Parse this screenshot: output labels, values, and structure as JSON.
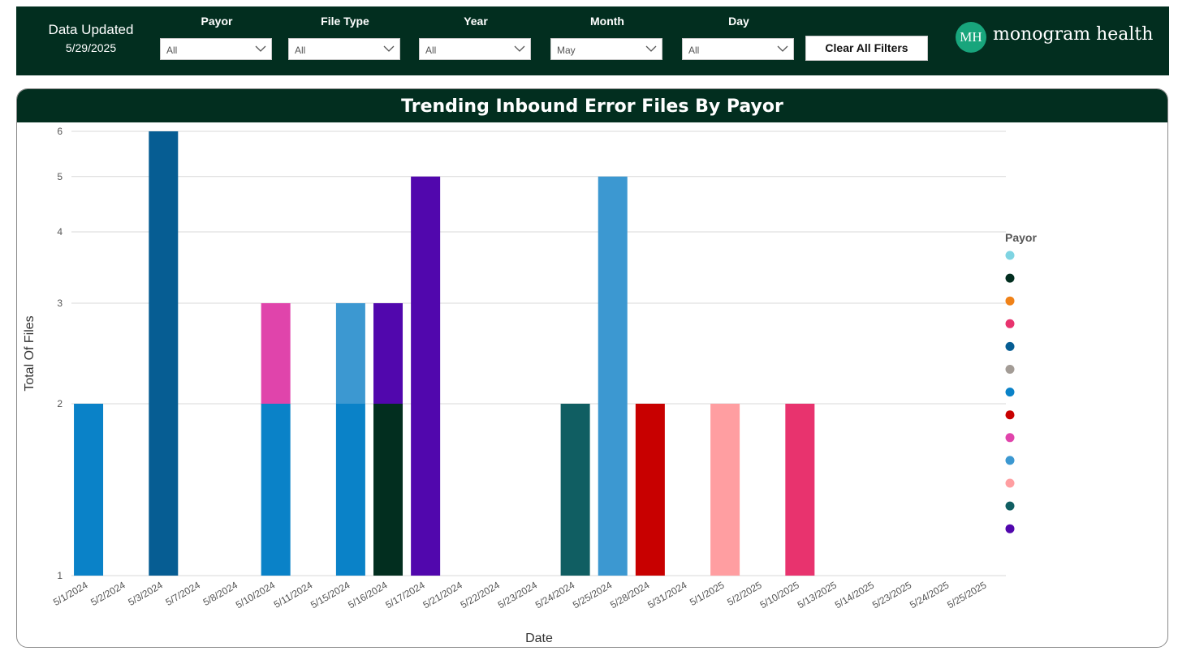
{
  "header": {
    "updated_label": "Data Updated",
    "updated_date": "5/29/2025",
    "filters": [
      {
        "label": "Payor",
        "value": "All"
      },
      {
        "label": "File Type",
        "value": "All"
      },
      {
        "label": "Year",
        "value": "All"
      },
      {
        "label": "Month",
        "value": "May"
      },
      {
        "label": "Day",
        "value": "All"
      }
    ],
    "clear_button": "Clear All Filters",
    "logo_mark": "MH",
    "logo_text": "monogram health"
  },
  "colors": {
    "header_bg": "#022e1f",
    "gridline": "#d9d9d9"
  },
  "chart_data": {
    "type": "bar",
    "stacked": true,
    "title": "Trending Inbound Error Files By Payor",
    "xlabel": "Date",
    "ylabel": "Total Of Files",
    "y_scale": "log",
    "ylim": [
      1,
      6
    ],
    "yticks": [
      1,
      2,
      3,
      4,
      5,
      6
    ],
    "grid": true,
    "legend_title": "Payor",
    "legend_position": "right",
    "legend_colors": [
      "#7fd4e2",
      "#022e1f",
      "#f08218",
      "#e8336e",
      "#065d93",
      "#a39c96",
      "#0a82c8",
      "#c80000",
      "#e044ab",
      "#3c98d1",
      "#ff9ea1",
      "#105e62",
      "#5107ad"
    ],
    "categories": [
      "5/1/2024",
      "5/2/2024",
      "5/3/2024",
      "5/7/2024",
      "5/8/2024",
      "5/10/2024",
      "5/11/2024",
      "5/15/2024",
      "5/16/2024",
      "5/17/2024",
      "5/21/2024",
      "5/22/2024",
      "5/23/2024",
      "5/24/2024",
      "5/25/2024",
      "5/28/2024",
      "5/31/2024",
      "5/1/2025",
      "5/2/2025",
      "5/10/2025",
      "5/13/2025",
      "5/14/2025",
      "5/23/2025",
      "5/24/2025",
      "5/25/2025"
    ],
    "bars": [
      {
        "category": "5/1/2024",
        "segments": [
          {
            "value": 2,
            "color": "#0a82c8"
          }
        ]
      },
      {
        "category": "5/3/2024",
        "segments": [
          {
            "value": 6,
            "color": "#065d93"
          }
        ]
      },
      {
        "category": "5/10/2024",
        "segments": [
          {
            "value": 2,
            "color": "#0a82c8"
          },
          {
            "value": 1,
            "color": "#e044ab"
          }
        ]
      },
      {
        "category": "5/15/2024",
        "segments": [
          {
            "value": 2,
            "color": "#0a82c8"
          },
          {
            "value": 1,
            "color": "#3c98d1"
          }
        ]
      },
      {
        "category": "5/16/2024",
        "segments": [
          {
            "value": 2,
            "color": "#022e1f"
          },
          {
            "value": 1,
            "color": "#5107ad"
          }
        ]
      },
      {
        "category": "5/17/2024",
        "segments": [
          {
            "value": 5,
            "color": "#5107ad"
          }
        ]
      },
      {
        "category": "5/24/2024",
        "segments": [
          {
            "value": 2,
            "color": "#105e62"
          }
        ]
      },
      {
        "category": "5/25/2024",
        "segments": [
          {
            "value": 5,
            "color": "#3c98d1"
          }
        ]
      },
      {
        "category": "5/28/2024",
        "segments": [
          {
            "value": 2,
            "color": "#c80000"
          }
        ]
      },
      {
        "category": "5/1/2025",
        "segments": [
          {
            "value": 2,
            "color": "#ff9ea1"
          }
        ]
      },
      {
        "category": "5/10/2025",
        "segments": [
          {
            "value": 2,
            "color": "#e8336e"
          }
        ]
      }
    ]
  }
}
